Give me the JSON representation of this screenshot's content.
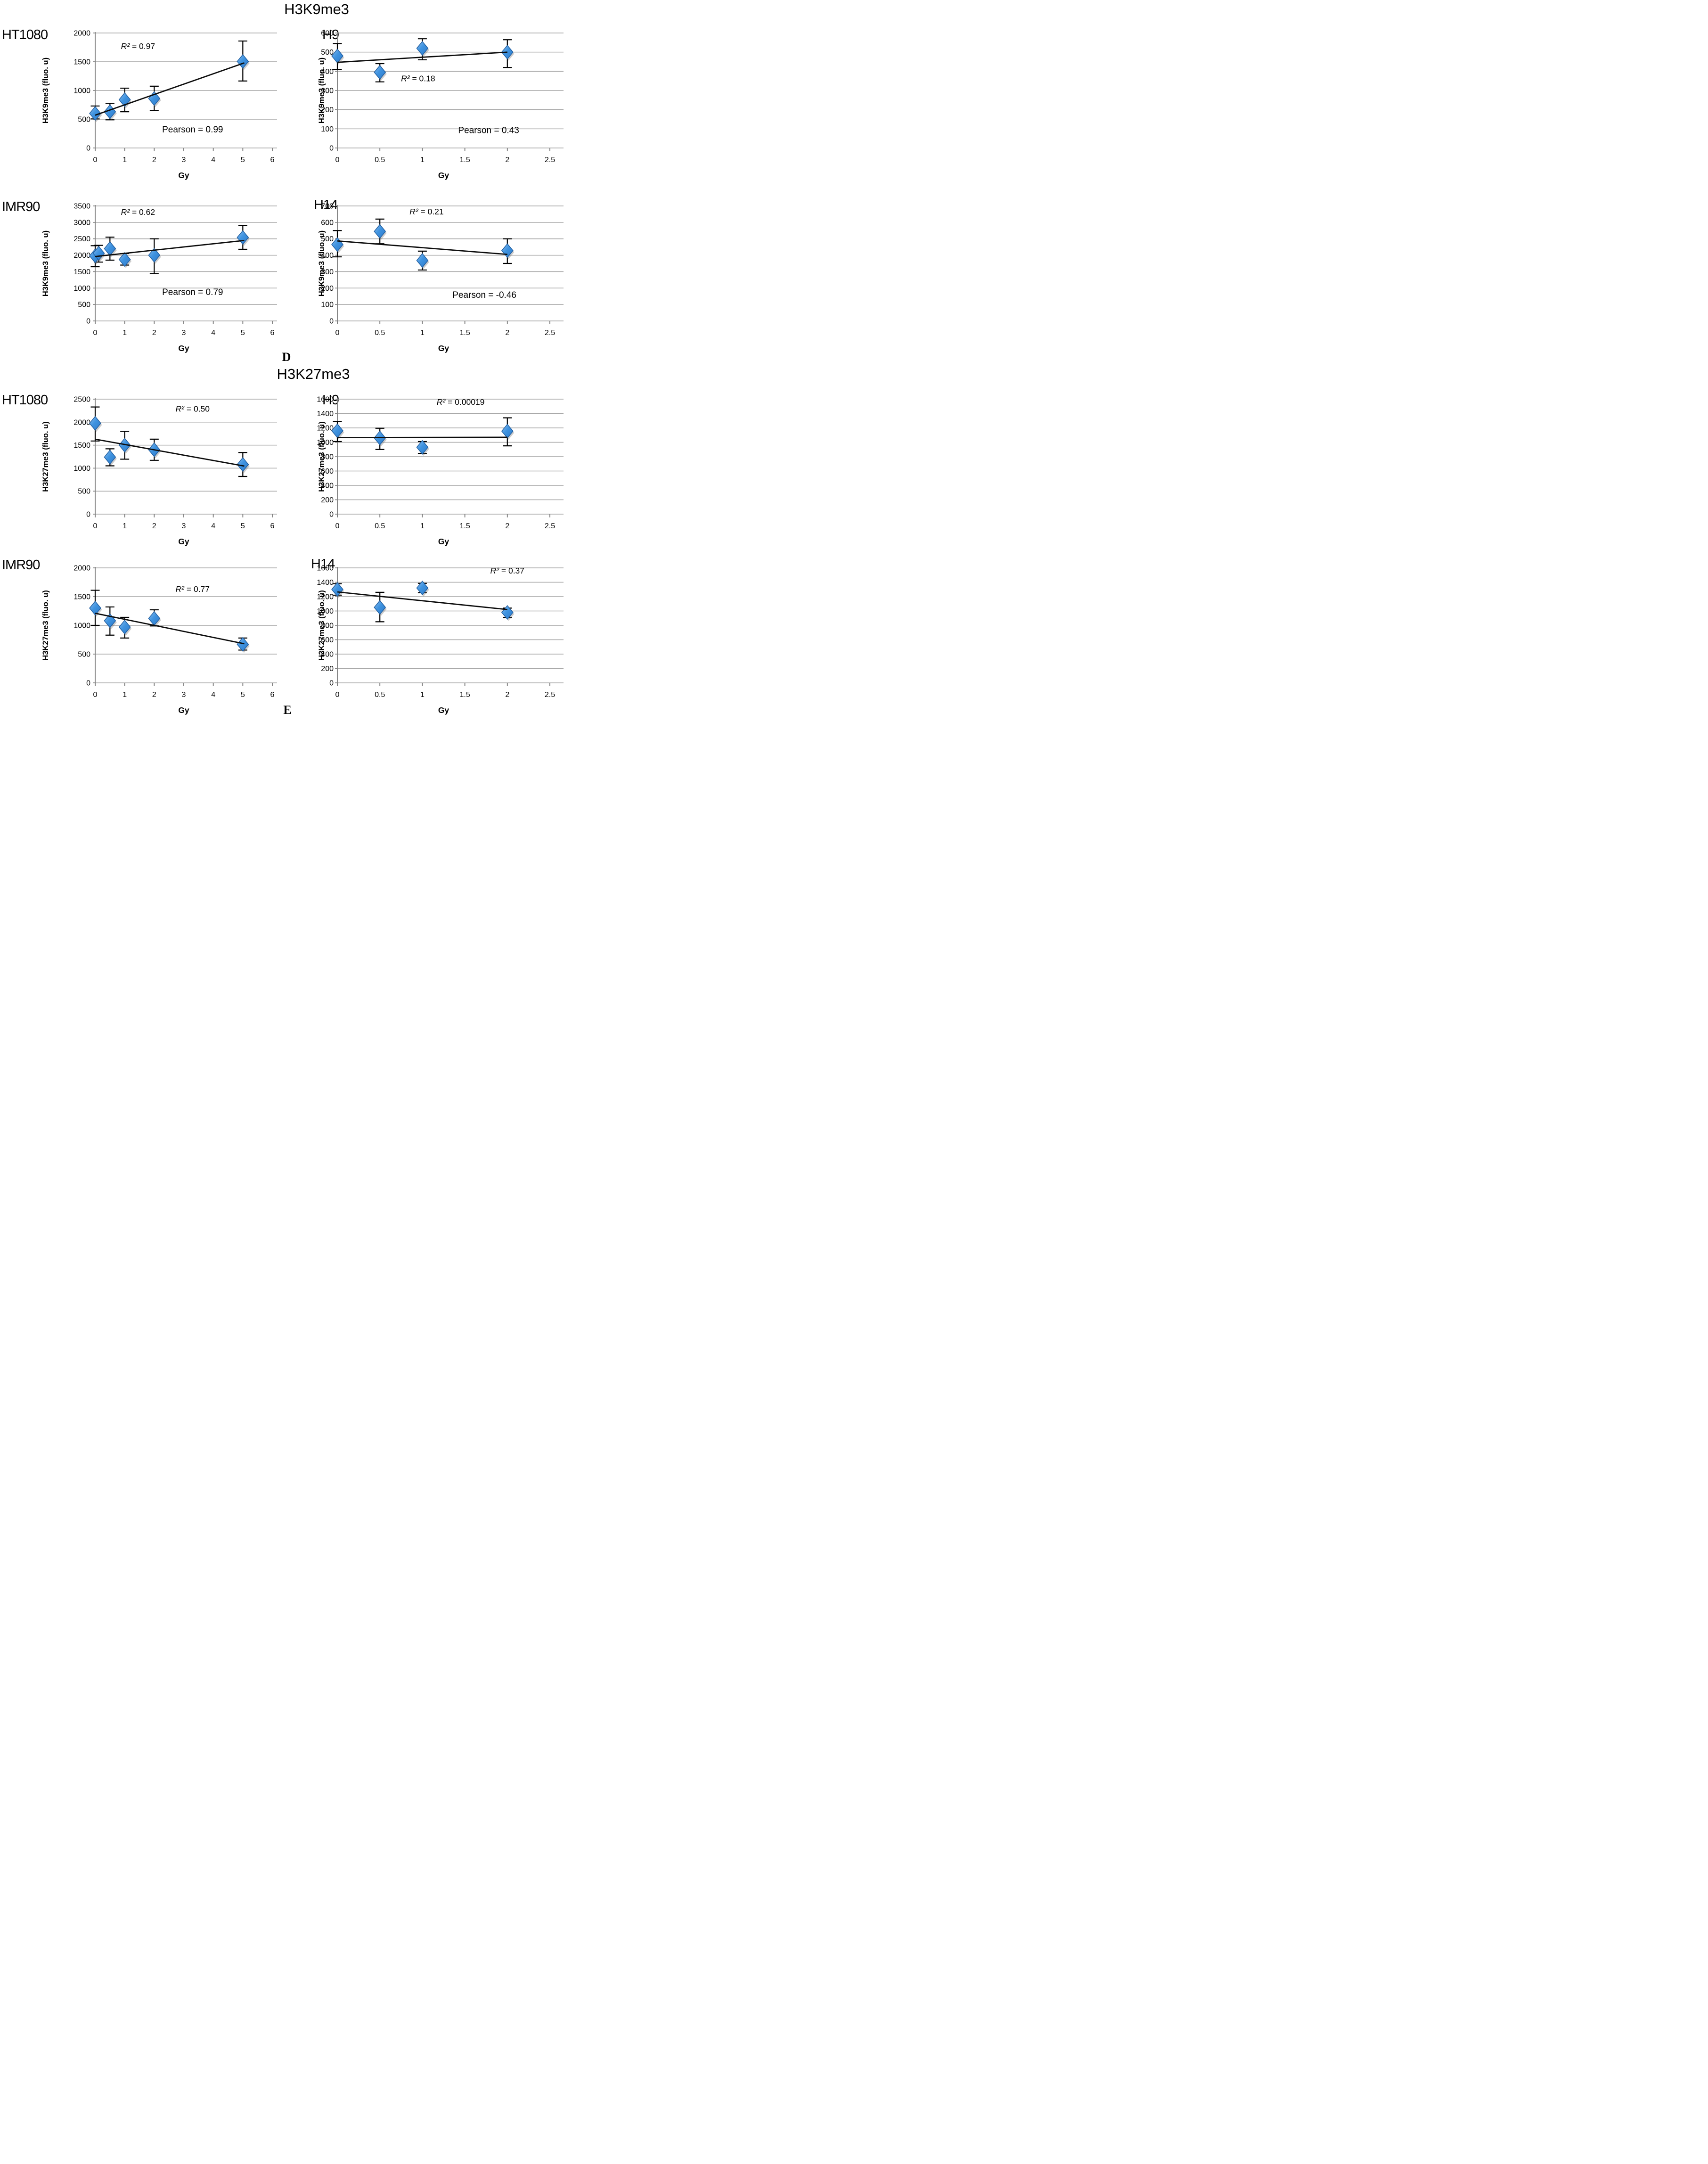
{
  "page": {
    "title_k9": "H3K9me3",
    "title_k27": "H3K27me3",
    "panel_d": "D",
    "panel_e": "E"
  },
  "annotations": {
    "r2_prefix": "R² = ",
    "pearson_prefix": "Pearson = "
  },
  "styles": {
    "marker_fill_light": "#8ec0ee",
    "marker_fill_mid": "#3f93e0",
    "marker_fill_dark": "#2e7ac9",
    "marker_stroke": "#1f5c9e",
    "gridline_color": "#a6a6a6",
    "axis_color": "#808080",
    "line_color": "#0d0d0d",
    "text_color": "#000000"
  },
  "chart_data": [
    {
      "type": "scatter",
      "section": "H3K9me3",
      "cell_line": "HT1080",
      "ylabel": "H3K9me3 (fluo. u)",
      "xlabel": "Gy",
      "xlim": [
        0,
        6
      ],
      "ylim": [
        0,
        2000
      ],
      "xticks": [
        0,
        1,
        2,
        3,
        4,
        5,
        6
      ],
      "yticks": [
        0,
        500,
        1000,
        1500,
        2000
      ],
      "r2": "0.97",
      "r2_at": [
        1.45,
        1720
      ],
      "pearson": "0.99",
      "pearson_at": [
        3.3,
        270
      ],
      "points": [
        {
          "x": 0,
          "y": 600,
          "lo": 505,
          "hi": 730
        },
        {
          "x": 0.5,
          "y": 630,
          "lo": 490,
          "hi": 775
        },
        {
          "x": 1,
          "y": 840,
          "lo": 630,
          "hi": 1040
        },
        {
          "x": 2,
          "y": 860,
          "lo": 650,
          "hi": 1075
        },
        {
          "x": 5,
          "y": 1505,
          "lo": 1165,
          "hi": 1860
        }
      ],
      "trend": {
        "x1": 0,
        "y1": 570,
        "x2": 5.05,
        "y2": 1480
      },
      "col": "left",
      "label_pos": [
        4,
        2
      ]
    },
    {
      "type": "scatter",
      "section": "H3K9me3",
      "cell_line": "H9",
      "ylabel": "H3K9me3 (fluo. u)",
      "xlabel": "Gy",
      "xlim": [
        0,
        2.5
      ],
      "ylim": [
        0,
        600
      ],
      "xticks": [
        0,
        0.5,
        1,
        1.5,
        2,
        2.5
      ],
      "yticks": [
        0,
        100,
        200,
        300,
        400,
        500,
        600
      ],
      "r2": "0.18",
      "r2_at": [
        0.95,
        348
      ],
      "pearson": "0.43",
      "pearson_at": [
        1.78,
        78
      ],
      "points": [
        {
          "x": 0,
          "y": 480,
          "lo": 410,
          "hi": 545
        },
        {
          "x": 0.5,
          "y": 395,
          "lo": 345,
          "hi": 440
        },
        {
          "x": 1,
          "y": 520,
          "lo": 460,
          "hi": 570
        },
        {
          "x": 2,
          "y": 500,
          "lo": 420,
          "hi": 565
        }
      ],
      "trend": {
        "x1": 0,
        "y1": 447,
        "x2": 2,
        "y2": 500
      },
      "col": "right",
      "label_pos": [
        80,
        2
      ]
    },
    {
      "type": "scatter",
      "section": "H3K9me3",
      "cell_line": "IMR90",
      "ylabel": "H3K9me3 (fluo. u)",
      "xlabel": "Gy",
      "xlim": [
        0,
        6
      ],
      "ylim": [
        0,
        3500
      ],
      "xticks": [
        0,
        1,
        2,
        3,
        4,
        5,
        6
      ],
      "yticks": [
        0,
        500,
        1000,
        1500,
        2000,
        2500,
        3000,
        3500
      ],
      "r2": "0.62",
      "r2_at": [
        1.45,
        3230
      ],
      "pearson": "0.79",
      "pearson_at": [
        3.3,
        790
      ],
      "points": [
        {
          "x": 0,
          "y": 1980,
          "lo": 1650,
          "hi": 2290
        },
        {
          "x": 0.12,
          "y": 2060,
          "lo": 1790,
          "hi": 2300
        },
        {
          "x": 0.5,
          "y": 2200,
          "lo": 1850,
          "hi": 2550
        },
        {
          "x": 1,
          "y": 1870,
          "lo": 1700,
          "hi": 2050
        },
        {
          "x": 2,
          "y": 2000,
          "lo": 1440,
          "hi": 2500
        },
        {
          "x": 5,
          "y": 2540,
          "lo": 2180,
          "hi": 2900
        }
      ],
      "trend": {
        "x1": 0,
        "y1": 1960,
        "x2": 5.05,
        "y2": 2450
      },
      "col": "left",
      "label_pos": [
        4,
        0
      ]
    },
    {
      "type": "scatter",
      "section": "H3K9me3",
      "cell_line": "H14",
      "ylabel": "H3K9me3 (fluo. u)",
      "xlabel": "Gy",
      "xlim": [
        0,
        2.5
      ],
      "ylim": [
        0,
        700
      ],
      "xticks": [
        0,
        0.5,
        1,
        1.5,
        2,
        2.5
      ],
      "yticks": [
        0,
        100,
        200,
        300,
        400,
        500,
        600,
        700
      ],
      "r2": "0.21",
      "r2_at": [
        1.05,
        648
      ],
      "pearson": "-0.46",
      "pearson_at": [
        1.73,
        140
      ],
      "points": [
        {
          "x": 0,
          "y": 465,
          "lo": 390,
          "hi": 550
        },
        {
          "x": 0.5,
          "y": 545,
          "lo": 470,
          "hi": 620
        },
        {
          "x": 1,
          "y": 368,
          "lo": 310,
          "hi": 425
        },
        {
          "x": 2,
          "y": 428,
          "lo": 350,
          "hi": 500
        }
      ],
      "trend": {
        "x1": 0,
        "y1": 487,
        "x2": 2,
        "y2": 405
      },
      "col": "right",
      "label_pos": [
        62,
        -4
      ]
    },
    {
      "type": "scatter",
      "section": "H3K27me3",
      "cell_line": "HT1080",
      "ylabel": "H3K27me3 (fluo. u)",
      "xlabel": "Gy",
      "xlim": [
        0,
        6
      ],
      "ylim": [
        0,
        2500
      ],
      "xticks": [
        0,
        1,
        2,
        3,
        4,
        5,
        6
      ],
      "yticks": [
        0,
        500,
        1000,
        1500,
        2000,
        2500
      ],
      "r2": "0.50",
      "r2_at": [
        3.3,
        2230
      ],
      "pearson": null,
      "pearson_at": null,
      "points": [
        {
          "x": 0,
          "y": 1975,
          "lo": 1590,
          "hi": 2330
        },
        {
          "x": 0.5,
          "y": 1240,
          "lo": 1050,
          "hi": 1420
        },
        {
          "x": 1,
          "y": 1500,
          "lo": 1195,
          "hi": 1800
        },
        {
          "x": 2,
          "y": 1400,
          "lo": 1170,
          "hi": 1630
        },
        {
          "x": 5,
          "y": 1080,
          "lo": 820,
          "hi": 1340
        }
      ],
      "trend": {
        "x1": 0,
        "y1": 1630,
        "x2": 5.05,
        "y2": 1045
      },
      "col": "left",
      "label_pos": [
        4,
        0
      ]
    },
    {
      "type": "scatter",
      "section": "H3K27me3",
      "cell_line": "H9",
      "ylabel": "H3K27me3 (fluo. u)",
      "xlabel": "Gy",
      "xlim": [
        0,
        2.5
      ],
      "ylim": [
        0,
        1600
      ],
      "xticks": [
        0,
        0.5,
        1,
        1.5,
        2,
        2.5
      ],
      "yticks": [
        0,
        200,
        400,
        600,
        800,
        1000,
        1200,
        1400,
        1600
      ],
      "r2": "0.00019",
      "r2_at": [
        1.45,
        1520
      ],
      "pearson": null,
      "pearson_at": null,
      "points": [
        {
          "x": 0,
          "y": 1160,
          "lo": 1010,
          "hi": 1290
        },
        {
          "x": 0.5,
          "y": 1060,
          "lo": 900,
          "hi": 1195
        },
        {
          "x": 1,
          "y": 930,
          "lo": 845,
          "hi": 1010
        },
        {
          "x": 2,
          "y": 1155,
          "lo": 950,
          "hi": 1340
        }
      ],
      "trend": {
        "x1": 0,
        "y1": 1065,
        "x2": 2,
        "y2": 1070
      },
      "col": "right",
      "label_pos": [
        80,
        0
      ]
    },
    {
      "type": "scatter",
      "section": "H3K27me3",
      "cell_line": "IMR90",
      "ylabel": "H3K27me3 (fluo. u)",
      "xlabel": "Gy",
      "xlim": [
        0,
        6
      ],
      "ylim": [
        0,
        2000
      ],
      "xticks": [
        0,
        1,
        2,
        3,
        4,
        5,
        6
      ],
      "yticks": [
        0,
        500,
        1000,
        1500,
        2000
      ],
      "r2": "0.77",
      "r2_at": [
        3.3,
        1580
      ],
      "pearson": null,
      "pearson_at": null,
      "points": [
        {
          "x": 0,
          "y": 1300,
          "lo": 1000,
          "hi": 1610
        },
        {
          "x": 0.5,
          "y": 1080,
          "lo": 830,
          "hi": 1320
        },
        {
          "x": 1,
          "y": 970,
          "lo": 780,
          "hi": 1140
        },
        {
          "x": 2,
          "y": 1120,
          "lo": 990,
          "hi": 1270
        },
        {
          "x": 5,
          "y": 670,
          "lo": 570,
          "hi": 780
        }
      ],
      "trend": {
        "x1": 0,
        "y1": 1210,
        "x2": 5.05,
        "y2": 680
      },
      "col": "left",
      "label_pos": [
        4,
        -8
      ]
    },
    {
      "type": "scatter",
      "section": "H3K27me3",
      "cell_line": "H14",
      "ylabel": "H3K27me3 (fluo. u)",
      "xlabel": "Gy",
      "xlim": [
        0,
        2.5
      ],
      "ylim": [
        0,
        1600
      ],
      "xticks": [
        0,
        0.5,
        1,
        1.5,
        2,
        2.5
      ],
      "yticks": [
        0,
        200,
        400,
        600,
        800,
        1000,
        1200,
        1400,
        1600
      ],
      "r2": "0.37",
      "r2_at": [
        2.0,
        1520
      ],
      "pearson": null,
      "pearson_at": null,
      "points": [
        {
          "x": 0,
          "y": 1300,
          "lo": 1220,
          "hi": 1380
        },
        {
          "x": 0.5,
          "y": 1050,
          "lo": 850,
          "hi": 1260
        },
        {
          "x": 1,
          "y": 1320,
          "lo": 1255,
          "hi": 1385
        },
        {
          "x": 2,
          "y": 980,
          "lo": 910,
          "hi": 1040
        }
      ],
      "trend": {
        "x1": 0,
        "y1": 1265,
        "x2": 2,
        "y2": 1020
      },
      "col": "right",
      "label_pos": [
        56,
        -10
      ]
    }
  ]
}
